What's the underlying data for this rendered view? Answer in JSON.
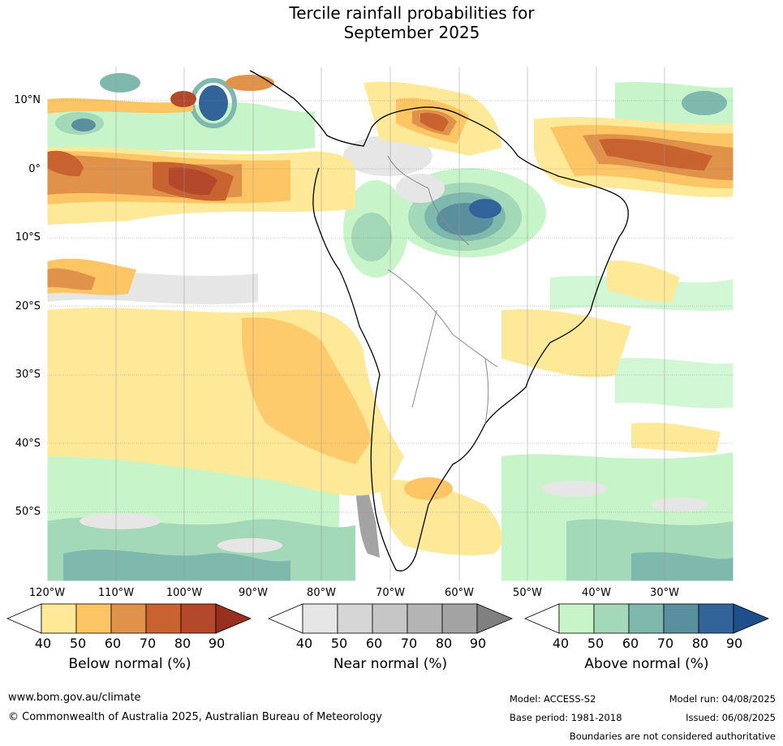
{
  "title_line1": "Tercile rainfall probabilities for",
  "title_line2": "September 2025",
  "lat_labels": [
    "10°N",
    "0°",
    "10°S",
    "20°S",
    "30°S",
    "40°S",
    "50°S"
  ],
  "lon_labels": [
    "120°W",
    "110°W",
    "100°W",
    "90°W",
    "80°W",
    "70°W",
    "60°W",
    "50°W",
    "40°W",
    "30°W"
  ],
  "colorbars": [
    {
      "label": "Below normal (%)",
      "ticks": [
        "40",
        "50",
        "60",
        "70",
        "80",
        "90"
      ],
      "colors": [
        "#ffffff",
        "#fee999",
        "#fdc563",
        "#e0914a",
        "#c8622f",
        "#b3482a",
        "#97301e"
      ]
    },
    {
      "label": "Near normal (%)",
      "ticks": [
        "40",
        "50",
        "60",
        "70",
        "80",
        "90"
      ],
      "colors": [
        "#ffffff",
        "#e6e6e6",
        "#d6d6d6",
        "#c6c6c6",
        "#b4b4b4",
        "#a3a3a3",
        "#808080"
      ]
    },
    {
      "label": "Above normal (%)",
      "ticks": [
        "40",
        "50",
        "60",
        "70",
        "80",
        "90"
      ],
      "colors": [
        "#ffffff",
        "#c7f5c9",
        "#a3d8b8",
        "#7fb8ad",
        "#5a8f9e",
        "#32649a",
        "#1e4f8c"
      ]
    }
  ],
  "footer": {
    "website": "www.bom.gov.au/climate",
    "copyright": "© Commonwealth of Australia 2025, Australian Bureau of Meteorology",
    "model": "Model: ACCESS-S2",
    "model_run": "Model run: 04/08/2025",
    "base_period": "Base period: 1981-2018",
    "issued": "Issued: 06/08/2025",
    "disclaimer": "Boundaries are not considered authoritative"
  }
}
